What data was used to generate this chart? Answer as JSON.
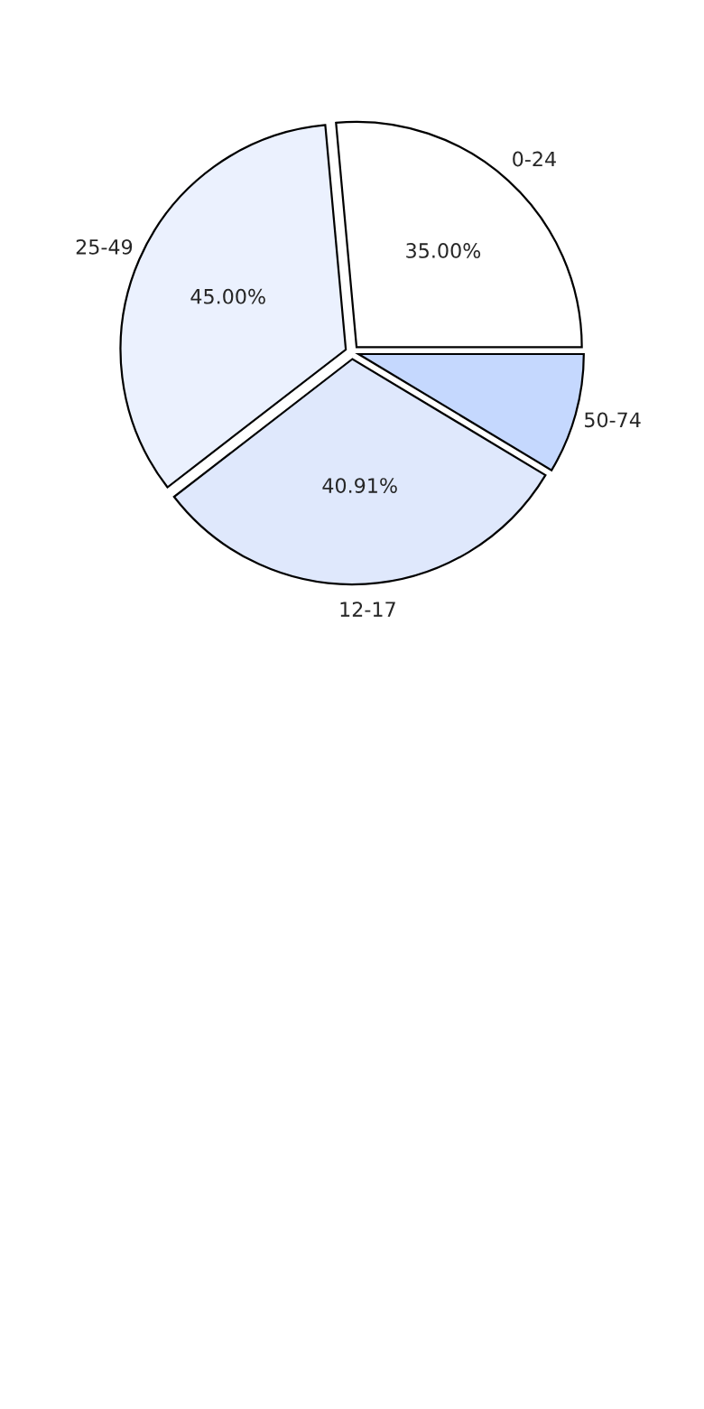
{
  "chart_data": {
    "type": "pie",
    "categories": [
      "0-24",
      "25-49",
      "12-17",
      "50-74"
    ],
    "values": [
      35,
      45,
      40.91,
      11.4
    ],
    "value_labels": [
      "35.00%",
      "45.00%",
      "40.91%",
      null
    ],
    "colors": [
      "#ffffff",
      "#ebf1fe",
      "#dfe8fc",
      "#c5d8fe"
    ]
  }
}
